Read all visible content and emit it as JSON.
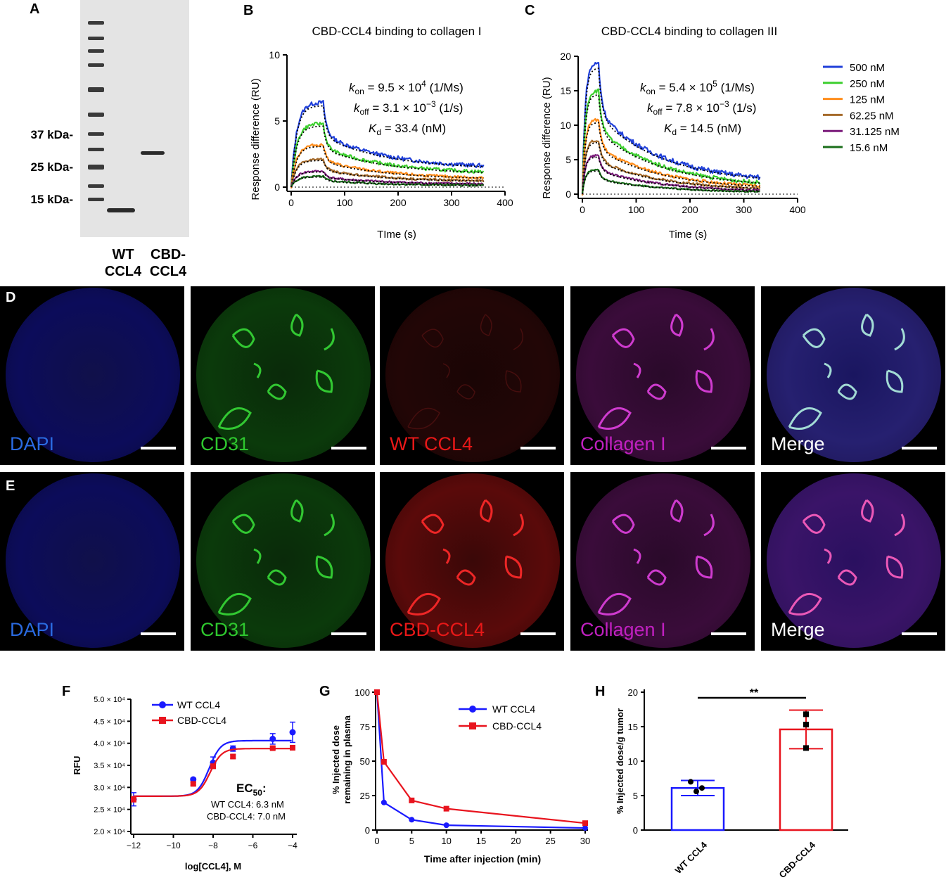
{
  "panels": {
    "A": {
      "label": "A",
      "markers": [
        "37 kDa-",
        "25 kDa-",
        "15 kDa-"
      ],
      "lanes": [
        "WT\nCCL4",
        "CBD-\nCCL4"
      ]
    },
    "B": {
      "label": "B",
      "title": "CBD-CCL4 binding to collagen I",
      "kinetics": {
        "kon": "9.5",
        "kon_exp": "4",
        "kon_unit": "(1/Ms)",
        "koff": "3.1",
        "koff_exp": "−3",
        "koff_unit": "(1/s)",
        "kd": "33.4",
        "kd_unit": "(nM)"
      }
    },
    "C": {
      "label": "C",
      "title": "CBD-CCL4 binding to collagen III",
      "kinetics": {
        "kon": "5.4",
        "kon_exp": "5",
        "kon_unit": "(1/Ms)",
        "koff": "7.8",
        "koff_exp": "−3",
        "koff_unit": "(1/s)",
        "kd": "14.5",
        "kd_unit": "(nM)"
      }
    },
    "D": {
      "label": "D",
      "stains": [
        "DAPI",
        "CD31",
        "WT CCL4",
        "Collagen I",
        "Merge"
      ]
    },
    "E": {
      "label": "E",
      "stains": [
        "DAPI",
        "CD31",
        "CBD-CCL4",
        "Collagen I",
        "Merge"
      ]
    },
    "F": {
      "label": "F",
      "ec50_title": "EC",
      "ec50_sub": "50",
      "ec50_colon": ":",
      "ec50_wt": "WT CCL4: 6.3 nM",
      "ec50_cbd": "CBD-CCL4: 7.0 nM"
    },
    "G": {
      "label": "G"
    },
    "H": {
      "label": "H",
      "significance": "**"
    }
  },
  "colors": {
    "wt": "#1a1aff",
    "cbd": "#e8141e",
    "conc_500": "#1f3fd9",
    "conc_250": "#3ccf2e",
    "conc_125": "#ff8c1a",
    "conc_62": "#a56a2a",
    "conc_31": "#7a1a7a",
    "conc_15": "#1a6e1a",
    "dapi": "#2a6ae0",
    "cd31": "#2ec72e",
    "ccl4": "#e81818",
    "collagen": "#c020c0",
    "merge": "#ffffff"
  },
  "chart_data": [
    {
      "id": "B",
      "type": "line",
      "title": "CBD-CCL4 binding to collagen I",
      "xlabel": "TIme (s)",
      "ylabel": "Response  difference (RU)",
      "xlim": [
        0,
        400
      ],
      "ylim": [
        0,
        10
      ],
      "xticks": [
        "0",
        "100",
        "200",
        "300",
        "400"
      ],
      "yticks": [
        "0",
        "5",
        "10"
      ],
      "injection_end_s": 60,
      "curve_end_s": 360,
      "series": [
        {
          "name": "500 nM",
          "peak": 6.4,
          "end": 1.4
        },
        {
          "name": "250 nM",
          "peak": 4.8,
          "end": 1.0
        },
        {
          "name": "125 nM",
          "peak": 3.2,
          "end": 0.6
        },
        {
          "name": "62.25 nM",
          "peak": 2.1,
          "end": 0.4
        },
        {
          "name": "31.125 nM",
          "peak": 1.2,
          "end": 0.2
        },
        {
          "name": "15.6 nM",
          "peak": 0.8,
          "end": 0.1
        }
      ]
    },
    {
      "id": "C",
      "type": "line",
      "title": "CBD-CCL4 binding to collagen III",
      "xlabel": "Time (s)",
      "ylabel": "Response  difference (RU)",
      "xlim": [
        0,
        400
      ],
      "ylim": [
        0,
        20
      ],
      "xticks": [
        "0",
        "100",
        "200",
        "300",
        "400"
      ],
      "yticks": [
        "0",
        "5",
        "10",
        "15",
        "20"
      ],
      "injection_end_s": 30,
      "curve_end_s": 330,
      "series": [
        {
          "name": "500 nM",
          "peak": 19.0,
          "end": 1.6
        },
        {
          "name": "250 nM",
          "peak": 15.0,
          "end": 1.0
        },
        {
          "name": "125 nM",
          "peak": 10.8,
          "end": 0.7
        },
        {
          "name": "62.25 nM",
          "peak": 7.8,
          "end": 0.5
        },
        {
          "name": "31.125 nM",
          "peak": 5.6,
          "end": 0.3
        },
        {
          "name": "15.6 nM",
          "peak": 3.5,
          "end": 0.2
        }
      ]
    },
    {
      "id": "F",
      "type": "scatter",
      "xlabel": "log[CCL4], M",
      "ylabel": "RFU",
      "xlim": [
        -12,
        -4
      ],
      "ylim": [
        20000,
        50000
      ],
      "xticks": [
        "−12",
        "−10",
        "−8",
        "−6",
        "−4"
      ],
      "yticks": [
        "2.0 × 10⁴",
        "2.5 × 10⁴",
        "3.0 × 10⁴",
        "3.5 × 10⁴",
        "4.0 × 10⁴",
        "4.5 × 10⁴",
        "5.0 × 10⁴"
      ],
      "series": [
        {
          "name": "WT CCL4",
          "x": [
            -12,
            -9,
            -8,
            -7,
            -5,
            -4
          ],
          "y": [
            27300,
            31800,
            35600,
            38800,
            41000,
            42500
          ],
          "err": [
            1500,
            300,
            1300,
            600,
            1200,
            2300
          ],
          "bottom": 28000,
          "top": 40600,
          "logec50": -8.2
        },
        {
          "name": "CBD-CCL4",
          "x": [
            -12,
            -9,
            -8,
            -7,
            -5,
            -4
          ],
          "y": [
            27300,
            30800,
            34800,
            37000,
            38900,
            39000
          ],
          "err": [
            600,
            300,
            500,
            400,
            300,
            500
          ],
          "bottom": 28000,
          "top": 38800,
          "logec50": -8.15
        }
      ]
    },
    {
      "id": "G",
      "type": "line",
      "xlabel": "Time after injection (min)",
      "ylabel": "% Injected dose\nremaining in plasma",
      "xlim": [
        0,
        30
      ],
      "ylim": [
        0,
        100
      ],
      "xticks": [
        "0",
        "5",
        "10",
        "15",
        "20",
        "25",
        "30"
      ],
      "yticks": [
        "0",
        "25",
        "50",
        "75",
        "100"
      ],
      "series": [
        {
          "name": "WT CCL4",
          "x": [
            0,
            1,
            5,
            10,
            30
          ],
          "y": [
            100,
            20,
            7.5,
            3.5,
            1.5
          ]
        },
        {
          "name": "CBD-CCL4",
          "x": [
            0,
            1,
            5,
            10,
            30
          ],
          "y": [
            100,
            49.5,
            21.5,
            15.5,
            5
          ]
        }
      ]
    },
    {
      "id": "H",
      "type": "bar",
      "categories": [
        "WT CCL4",
        "CBD-CCL4"
      ],
      "values": [
        6.1,
        14.6
      ],
      "sd": [
        1.1,
        2.8
      ],
      "points": [
        [
          7.0,
          5.6,
          6.1
        ],
        [
          16.8,
          15.3,
          11.9
        ]
      ],
      "ylabel": "% Injected dose/g tumor",
      "ylim": [
        0,
        20
      ],
      "yticks": [
        "0",
        "5",
        "10",
        "15",
        "20"
      ]
    }
  ]
}
